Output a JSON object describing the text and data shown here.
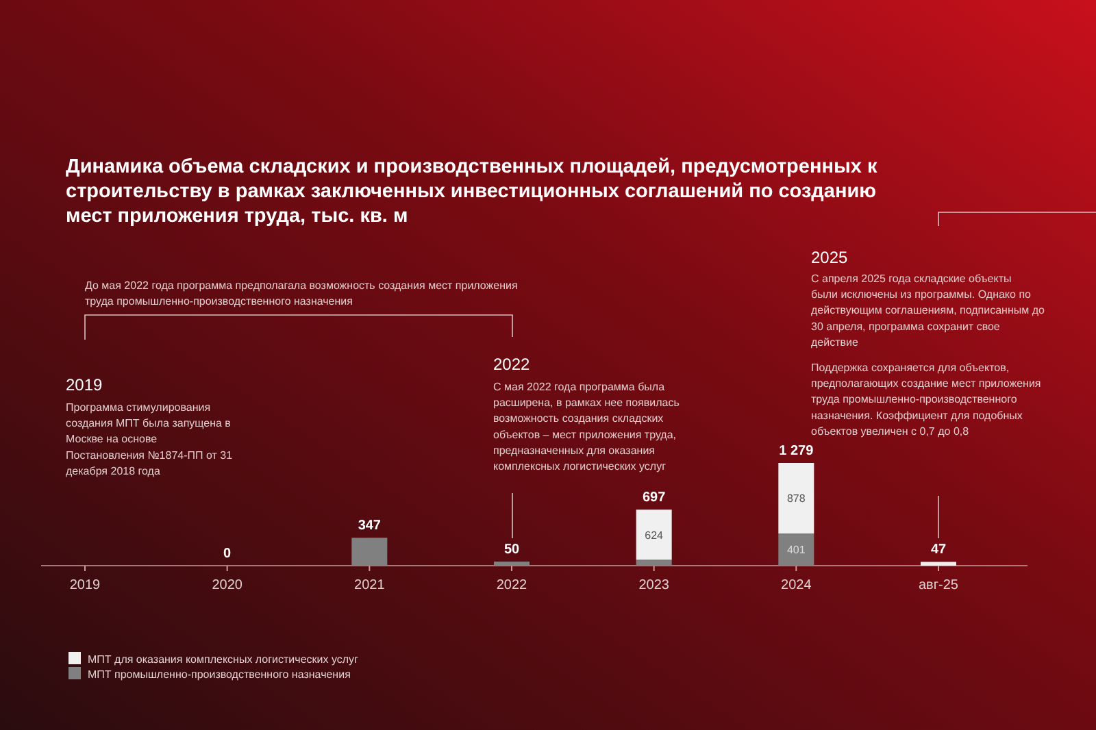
{
  "chart_data": {
    "type": "bar",
    "stacked": true,
    "title": "Динамика объема складских и производственных площадей, предусмотренных к строительству в рамках заключенных инвестиционных соглашений по созданию мест приложения труда, тыс. кв. м",
    "categories": [
      "2019",
      "2020",
      "2021",
      "2022",
      "2023",
      "2024",
      "авг-25"
    ],
    "series": [
      {
        "name": "МПТ промышленно-производственного назначения",
        "color": "#808080",
        "values": [
          null,
          0,
          347,
          50,
          73,
          401,
          null
        ],
        "value_labels": [
          null,
          null,
          null,
          null,
          null,
          "401",
          null
        ]
      },
      {
        "name": "МПТ для оказания комплексных логистических услуг",
        "color": "#f0f0f0",
        "values": [
          null,
          null,
          null,
          null,
          624,
          878,
          47
        ],
        "value_labels": [
          null,
          null,
          null,
          null,
          "624",
          "878",
          null
        ]
      }
    ],
    "totals": [
      null,
      "0",
      "347",
      "50",
      "697",
      "1 279",
      "47"
    ],
    "legend": "bottom left",
    "annotations": [
      "До мая 2022 года программа предполагала возможность создания мест приложения труда промышленно-производственного назначения",
      "2019",
      "Программа стимулирования создания МПТ была запущена в Москве на основе Постановления №1874-ПП от 31 декабря 2018 года",
      "2022",
      "С мая 2022 года программа была расширена, в рамках нее появилась возможность создания складских объектов – мест приложения труда, предназначенных для оказания комплексных логистических услуг",
      "2025",
      "С апреля 2025 года складские объекты были исключены из программы. Однако по действующим соглашениям, подписанным до 30 апреля, программа сохранит свое действие",
      "Поддержка сохраняется для объектов, предполагающих создание мест приложения труда промышленно-производственного назначения. Коэффициент для подобных объектов увеличен с 0,7 до 0,8"
    ]
  }
}
